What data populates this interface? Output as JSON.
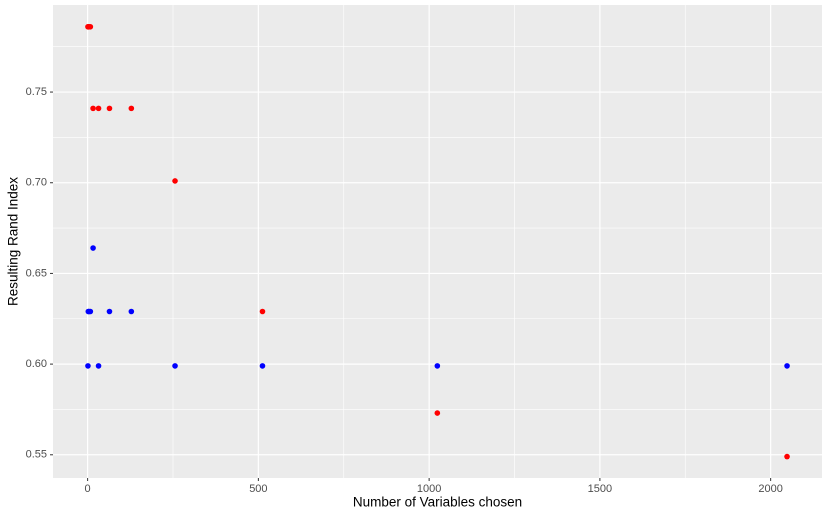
{
  "chart_data": {
    "type": "scatter",
    "x_label": "Number of Variables chosen",
    "y_label": "Resulting Rand Index",
    "x": [
      1,
      2,
      4,
      8,
      16,
      32,
      64,
      128,
      256,
      512,
      1024,
      2048
    ],
    "series": [
      {
        "color": "#ff0000",
        "values": [
          0.786,
          0.786,
          0.786,
          0.786,
          0.741,
          0.741,
          0.741,
          0.741,
          0.701,
          0.629,
          0.573,
          0.549
        ]
      },
      {
        "color": "#0000ff",
        "values": [
          0.599,
          0.629,
          0.629,
          0.629,
          0.664,
          0.599,
          0.629,
          0.629,
          0.599,
          0.599,
          0.599,
          0.599
        ]
      }
    ],
    "xlim": [
      -101.35,
      2150.35
    ],
    "ylim": [
      0.5372,
      0.798
    ],
    "xticks": [
      0,
      500,
      1000,
      1500,
      2000
    ],
    "yticks": [
      0.55,
      {
        "value": 0.6,
        "label": "0.60"
      },
      0.65,
      {
        "value": 0.7,
        "label": "0.70"
      },
      0.75
    ],
    "minor_xticks": [
      250,
      750,
      1250,
      1750
    ],
    "minor_yticks": [
      0.575,
      0.625,
      0.675,
      0.725,
      0.775
    ],
    "grid": true
  }
}
